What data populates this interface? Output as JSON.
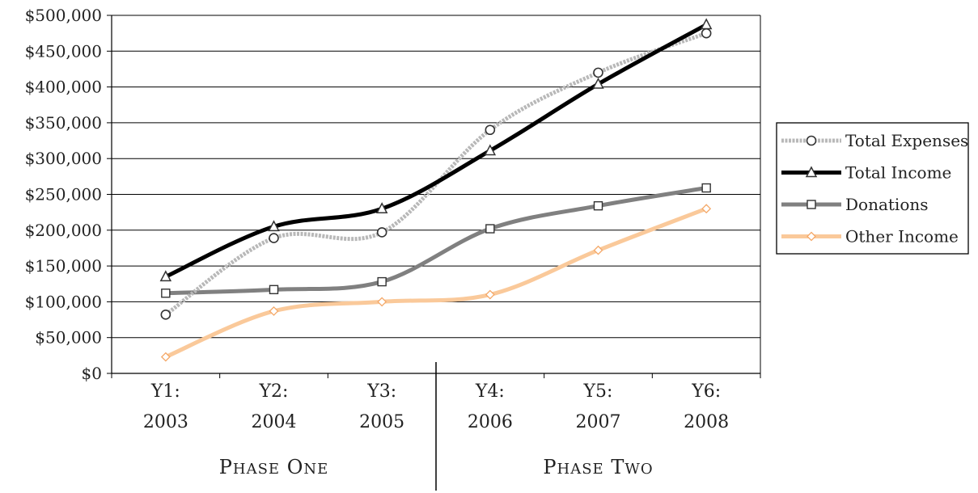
{
  "chart_data": {
    "type": "line",
    "categories": [
      [
        "Y1:",
        "2003"
      ],
      [
        "Y2:",
        "2004"
      ],
      [
        "Y3:",
        "2005"
      ],
      [
        "Y4:",
        "2006"
      ],
      [
        "Y5:",
        "2007"
      ],
      [
        "Y6:",
        "2008"
      ]
    ],
    "y_ticks": [
      "$0",
      "$50,000",
      "$100,000",
      "$150,000",
      "$200,000",
      "$250,000",
      "$300,000",
      "$350,000",
      "$400,000",
      "$450,000",
      "$500,000"
    ],
    "ylim": [
      0,
      500000
    ],
    "grid": true,
    "legend_position": "right",
    "phases": [
      {
        "label": "Phase One",
        "categories": [
          0,
          1,
          2
        ]
      },
      {
        "label": "Phase Two",
        "categories": [
          3,
          4,
          5
        ]
      }
    ],
    "series": [
      {
        "name": "Total Expenses",
        "values": [
          82000,
          189000,
          197000,
          340000,
          420000,
          475000
        ],
        "color": "#b8b8b8",
        "marker": "circle",
        "dashed": true
      },
      {
        "name": "Total Income",
        "values": [
          135000,
          205000,
          230000,
          311000,
          404000,
          487000
        ],
        "color": "#000000",
        "marker": "triangle",
        "dashed": false
      },
      {
        "name": "Donations",
        "values": [
          112000,
          117000,
          128000,
          202000,
          234000,
          259000
        ],
        "color": "#808080",
        "marker": "square",
        "dashed": false
      },
      {
        "name": "Other Income",
        "values": [
          23000,
          87000,
          100000,
          110000,
          172000,
          230000
        ],
        "color": "#fac99a",
        "marker": "diamond",
        "dashed": false
      }
    ]
  }
}
